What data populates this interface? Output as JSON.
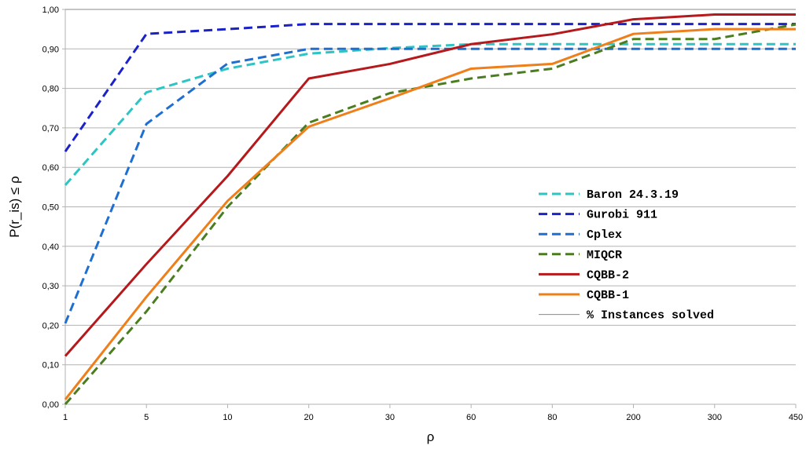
{
  "chart_data": {
    "type": "line",
    "title": "",
    "xlabel": "ρ",
    "ylabel": "P(r_is) ≤ ρ",
    "categories": [
      "1",
      "5",
      "10",
      "20",
      "30",
      "60",
      "80",
      "200",
      "300",
      "450"
    ],
    "y_ticks": [
      "0,00",
      "0,10",
      "0,20",
      "0,30",
      "0,40",
      "0,50",
      "0,60",
      "0,70",
      "0,80",
      "0,90",
      "1,00"
    ],
    "ylim": [
      0,
      1
    ],
    "grid": "horizontal",
    "legend_position": "right-center",
    "series": [
      {
        "name": "Baron 24.3.19",
        "color": "#2ec4c4",
        "style": "dashed",
        "values": [
          0.555,
          0.79,
          0.85,
          0.888,
          0.902,
          0.912,
          0.912,
          0.912,
          0.912,
          0.912
        ]
      },
      {
        "name": "Gurobi 911",
        "color": "#1a22c8",
        "style": "dashed",
        "values": [
          0.64,
          0.938,
          0.95,
          0.963,
          0.963,
          0.963,
          0.963,
          0.963,
          0.963,
          0.963
        ]
      },
      {
        "name": "Cplex",
        "color": "#1f6fd1",
        "style": "dashed",
        "values": [
          0.205,
          0.71,
          0.863,
          0.9,
          0.9,
          0.9,
          0.9,
          0.9,
          0.9,
          0.9
        ]
      },
      {
        "name": "MIQCR",
        "color": "#4a7d1f",
        "style": "dashed",
        "values": [
          0.0,
          0.235,
          0.5,
          0.713,
          0.788,
          0.825,
          0.85,
          0.925,
          0.925,
          0.962
        ]
      },
      {
        "name": "CQBB-2",
        "color": "#b5191c",
        "style": "solid",
        "values": [
          0.122,
          0.355,
          0.578,
          0.825,
          0.862,
          0.912,
          0.937,
          0.975,
          0.987,
          0.987
        ]
      },
      {
        "name": "CQBB-1",
        "color": "#ee7f1a",
        "style": "solid",
        "values": [
          0.012,
          0.272,
          0.515,
          0.703,
          0.775,
          0.85,
          0.862,
          0.938,
          0.95,
          0.95
        ]
      },
      {
        "name": "% Instances solved",
        "color": "#8a8a8a",
        "style": "thin",
        "values": [
          1,
          1,
          1,
          1,
          1,
          1,
          1,
          1,
          1,
          1
        ]
      }
    ]
  }
}
